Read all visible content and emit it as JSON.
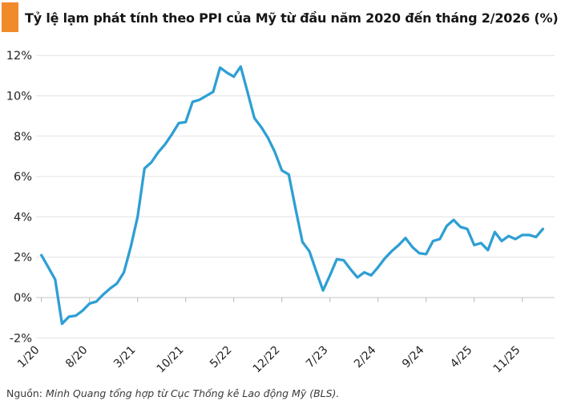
{
  "header": {
    "title": "Tỷ lệ lạm phát tính theo PPI của Mỹ từ đầu năm 2020 đến tháng 2/2026 (%)",
    "accent_color": "#F18A2B"
  },
  "footer": {
    "source_label": "Nguồn:",
    "source_text": " Minh Quang tổng hợp từ Cục Thống kê Lao động Mỹ (BLS)."
  },
  "chart_data": {
    "type": "line",
    "title": "Tỷ lệ lạm phát tính theo PPI của Mỹ từ đầu năm 2020 đến tháng 2/2026 (%)",
    "unit": "%",
    "x_start": "1/2020",
    "x_end": "2/2026",
    "x": [
      "1/20",
      "2/20",
      "3/20",
      "4/20",
      "5/20",
      "6/20",
      "7/20",
      "8/20",
      "9/20",
      "10/20",
      "11/20",
      "12/20",
      "1/21",
      "2/21",
      "3/21",
      "4/21",
      "5/21",
      "6/21",
      "7/21",
      "8/21",
      "9/21",
      "10/21",
      "11/21",
      "12/21",
      "1/22",
      "2/22",
      "3/22",
      "4/22",
      "5/22",
      "6/22",
      "7/22",
      "8/22",
      "9/22",
      "10/22",
      "11/22",
      "12/22",
      "1/23",
      "2/23",
      "3/23",
      "4/23",
      "5/23",
      "6/23",
      "7/23",
      "8/23",
      "9/23",
      "10/23",
      "11/23",
      "12/23",
      "1/24",
      "2/24",
      "3/24",
      "4/24",
      "5/24",
      "6/24",
      "7/24",
      "8/24",
      "9/24",
      "10/24",
      "11/24",
      "12/24",
      "1/25",
      "2/25",
      "3/25",
      "4/25",
      "5/25",
      "6/25",
      "7/25",
      "8/25",
      "9/25",
      "10/25",
      "11/25",
      "12/25",
      "1/26",
      "2/26"
    ],
    "values": [
      2.1,
      1.5,
      0.9,
      -1.3,
      -0.95,
      -0.9,
      -0.65,
      -0.3,
      -0.2,
      0.15,
      0.45,
      0.7,
      1.25,
      2.5,
      4.0,
      6.4,
      6.7,
      7.2,
      7.6,
      8.1,
      8.65,
      8.7,
      9.7,
      9.8,
      10.0,
      10.2,
      11.4,
      11.15,
      10.95,
      11.45,
      10.2,
      8.9,
      8.45,
      7.9,
      7.2,
      6.3,
      6.1,
      4.4,
      2.75,
      2.3,
      1.3,
      0.35,
      1.1,
      1.9,
      1.85,
      1.4,
      1.0,
      1.25,
      1.1,
      1.5,
      1.95,
      2.3,
      2.6,
      2.95,
      2.5,
      2.2,
      2.15,
      2.8,
      2.9,
      3.55,
      3.85,
      3.5,
      3.4,
      2.6,
      2.7,
      2.35,
      3.25,
      2.8,
      3.05,
      2.9,
      3.1,
      3.1,
      3.0,
      3.4
    ],
    "x_tick_labels": [
      "1/20",
      "8/20",
      "3/21",
      "10/21",
      "5/22",
      "12/22",
      "7/23",
      "2/24",
      "9/24",
      "4/25",
      "11/25"
    ],
    "x_tick_every_months": 7,
    "y_tick_labels": [
      "12%",
      "10%",
      "8%",
      "6%",
      "4%",
      "2%",
      "0%",
      "-2%"
    ],
    "y_tick_values": [
      12,
      10,
      8,
      6,
      4,
      2,
      0,
      -2
    ],
    "ylim": [
      -2.8,
      12.6
    ],
    "grid": "horizontal",
    "legend_position": "none",
    "line_color": "#2E9FD4",
    "grid_color": "#e2e2e2",
    "zero_line_color": "#c4c4c4",
    "tick_color": "#b5b5b5",
    "label_color": "#222222"
  }
}
